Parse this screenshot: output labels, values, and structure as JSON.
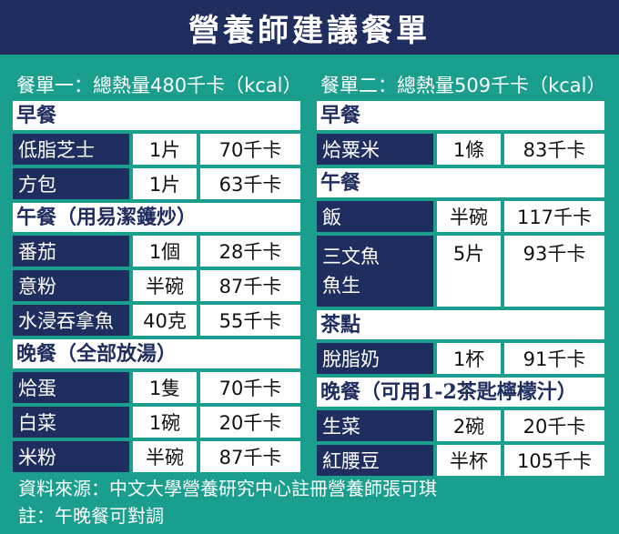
{
  "title": "營養師建議餐單",
  "menu1": {
    "title": "餐單一：總熱量480千卡（kcal）",
    "meals": [
      {
        "name": "早餐",
        "items": [
          {
            "name": "低脂芝士",
            "qty": "1片",
            "cal": "70千卡"
          },
          {
            "name": "方包",
            "qty": "1片",
            "cal": "63千卡"
          }
        ]
      },
      {
        "name": "午餐（用易潔鑊炒）",
        "items": [
          {
            "name": "番茄",
            "qty": "1個",
            "cal": "28千卡"
          },
          {
            "name": "意粉",
            "qty": "半碗",
            "cal": "87千卡"
          },
          {
            "name": "水浸吞拿魚",
            "qty": "40克",
            "cal": "55千卡"
          }
        ]
      },
      {
        "name": "晚餐（全部放湯）",
        "items": [
          {
            "name": "烚蛋",
            "qty": "1隻",
            "cal": "70千卡"
          },
          {
            "name": "白菜",
            "qty": "1碗",
            "cal": "20千卡"
          },
          {
            "name": "米粉",
            "qty": "半碗",
            "cal": "87千卡"
          }
        ]
      }
    ]
  },
  "menu2": {
    "title": "餐單二：總熱量509千卡（kcal）",
    "meals": [
      {
        "name": "早餐",
        "items": [
          {
            "name": "烚粟米",
            "qty": "1條",
            "cal": "83千卡"
          }
        ]
      },
      {
        "name": "午餐",
        "items": [
          {
            "name": "飯",
            "qty": "半碗",
            "cal": "117千卡"
          },
          {
            "name_line1": "三文魚",
            "name_line2": "魚生",
            "qty": "5片",
            "cal": "93千卡"
          }
        ]
      },
      {
        "name": "茶點",
        "items": [
          {
            "name": "脫脂奶",
            "qty": "1杯",
            "cal": "91千卡"
          }
        ]
      },
      {
        "name": "晚餐（可用1-2茶匙檸檬汁）",
        "items": [
          {
            "name": "生菜",
            "qty": "2碗",
            "cal": "20千卡"
          },
          {
            "name": "紅腰豆",
            "qty": "半杯",
            "cal": "105千卡"
          }
        ]
      }
    ]
  },
  "footer": {
    "source": "資料來源：中文大學營養研究中心註冊營養師張可琪",
    "note": "註：午晚餐可對調"
  }
}
